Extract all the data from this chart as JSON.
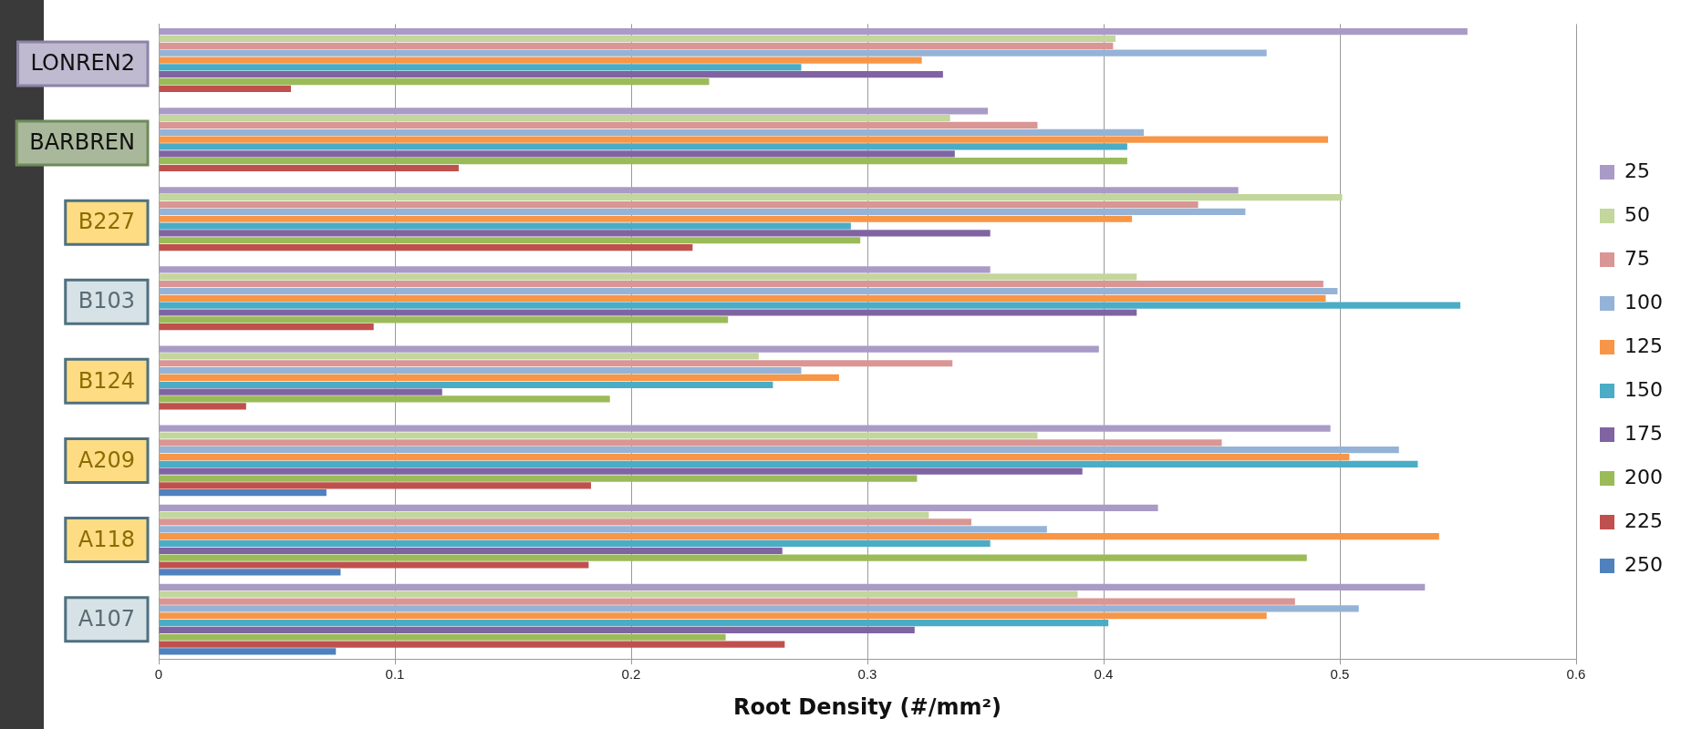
{
  "chart_data": {
    "type": "bar",
    "orientation": "horizontal",
    "xlabel": "Root Density (#/mm²)",
    "categories": [
      "LONREN2",
      "BARBREN",
      "B227",
      "B103",
      "B124",
      "A209",
      "A118",
      "A107"
    ],
    "xlim": [
      0,
      0.6
    ],
    "xticks": [
      0,
      0.1,
      0.2,
      0.3,
      0.4,
      0.5,
      0.6
    ],
    "grid": "x",
    "legend": "right",
    "series": [
      {
        "name": "25",
        "color": "#a99bc6",
        "values": [
          0.554,
          0.351,
          0.457,
          0.352,
          0.398,
          0.496,
          0.423,
          0.536
        ]
      },
      {
        "name": "50",
        "color": "#c3d69b",
        "values": [
          0.405,
          0.335,
          0.501,
          0.414,
          0.254,
          0.372,
          0.326,
          0.389
        ]
      },
      {
        "name": "75",
        "color": "#d99694",
        "values": [
          0.404,
          0.372,
          0.44,
          0.493,
          0.336,
          0.45,
          0.344,
          0.481
        ]
      },
      {
        "name": "100",
        "color": "#95b3d7",
        "values": [
          0.469,
          0.417,
          0.46,
          0.499,
          0.272,
          0.525,
          0.376,
          0.508
        ]
      },
      {
        "name": "125",
        "color": "#f79646",
        "values": [
          0.323,
          0.495,
          0.412,
          0.494,
          0.288,
          0.504,
          0.542,
          0.469
        ]
      },
      {
        "name": "150",
        "color": "#4bacc6",
        "values": [
          0.272,
          0.41,
          0.293,
          0.551,
          0.26,
          0.533,
          0.352,
          0.402
        ]
      },
      {
        "name": "175",
        "color": "#8064a2",
        "values": [
          0.332,
          0.337,
          0.352,
          0.414,
          0.12,
          0.391,
          0.264,
          0.32
        ]
      },
      {
        "name": "200",
        "color": "#9bbb59",
        "values": [
          0.233,
          0.41,
          0.297,
          0.241,
          0.191,
          0.321,
          0.486,
          0.24
        ]
      },
      {
        "name": "225",
        "color": "#c0504d",
        "values": [
          0.056,
          0.127,
          0.226,
          0.091,
          0.037,
          0.183,
          0.182,
          0.265
        ]
      },
      {
        "name": "250",
        "color": "#4f81bd",
        "values": [
          null,
          null,
          null,
          null,
          null,
          0.071,
          0.077,
          0.075
        ]
      }
    ]
  }
}
